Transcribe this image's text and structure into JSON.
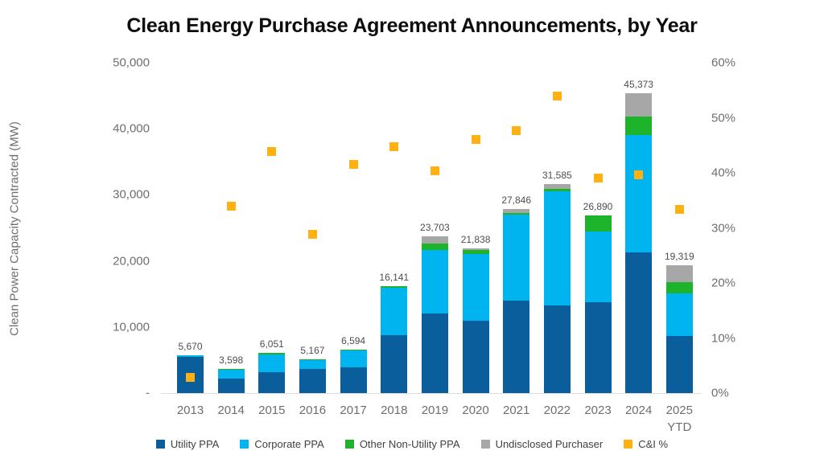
{
  "chart_data": {
    "type": "bar",
    "stacked": true,
    "title": "Clean Energy Purchase Agreement Announcements, by Year",
    "ylabel_left": "Clean Power Capacity Contracted (MW)",
    "axis_left": {
      "min": 0,
      "max": 50000,
      "ticks": [
        "50,000",
        "40,000",
        "30,000",
        "20,000",
        "10,000",
        "-"
      ]
    },
    "axis_right": {
      "min": 0,
      "max": 60,
      "ticks": [
        "60%",
        "50%",
        "40%",
        "30%",
        "20%",
        "10%",
        "0%"
      ]
    },
    "grid": false,
    "legend_position": "bottom",
    "categories": [
      "2013",
      "2014",
      "2015",
      "2016",
      "2017",
      "2018",
      "2019",
      "2020",
      "2021",
      "2022",
      "2023",
      "2024",
      "2025 YTD"
    ],
    "series": [
      {
        "name": "Utility PPA",
        "color": "#0A5E9C",
        "values": [
          5500,
          2200,
          3200,
          3600,
          3900,
          8800,
          12100,
          11000,
          14000,
          13200,
          13800,
          21300,
          8600
        ]
      },
      {
        "name": "Corporate PPA",
        "color": "#00B4EF",
        "values": [
          170,
          1300,
          2650,
          1450,
          2550,
          7100,
          9500,
          10000,
          13000,
          17300,
          10600,
          17800,
          6500
        ]
      },
      {
        "name": "Other Non-Utility PPA",
        "color": "#1DB32B",
        "values": [
          0,
          98,
          201,
          117,
          144,
          241,
          1000,
          600,
          300,
          370,
          2490,
          2700,
          1700
        ]
      },
      {
        "name": "Undisclosed Purchaser",
        "color": "#A7A7A7",
        "values": [
          0,
          0,
          0,
          0,
          0,
          0,
          1103,
          238,
          546,
          715,
          0,
          3573,
          2519
        ]
      }
    ],
    "totals": [
      5670,
      3598,
      6051,
      5167,
      6594,
      16141,
      23703,
      21838,
      27846,
      31585,
      26890,
      45373,
      19319
    ],
    "totals_display": [
      "5,670",
      "3,598",
      "6,051",
      "5,167",
      "6,594",
      "16,141",
      "23,703",
      "21,838",
      "27,846",
      "31,585",
      "26,890",
      "45,373",
      "19,319"
    ],
    "scatter": {
      "name": "C&I %",
      "color": "#FFB013",
      "values_percent": [
        2.8,
        33.9,
        43.8,
        28.9,
        41.5,
        44.8,
        40.3,
        46.1,
        47.6,
        53.9,
        39.0,
        39.7,
        33.4
      ]
    },
    "legend": [
      "Utility PPA",
      "Corporate PPA",
      "Other Non-Utility PPA",
      "Undisclosed Purchaser",
      "C&I %"
    ]
  }
}
